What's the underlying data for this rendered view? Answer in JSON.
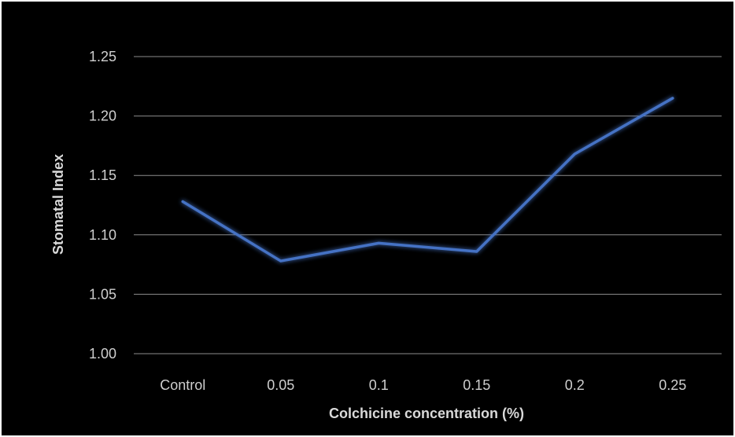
{
  "chart_data": {
    "type": "line",
    "title": "",
    "xlabel": "Colchicine concentration (%)",
    "ylabel": "Stomatal Index",
    "categories": [
      "Control",
      "0.05",
      "0.1",
      "0.15",
      "0.2",
      "0.25"
    ],
    "series": [
      {
        "values": [
          1.128,
          1.078,
          1.093,
          1.086,
          1.168,
          1.215
        ],
        "color": "#4472c4"
      }
    ],
    "ylim": [
      1.0,
      1.25
    ],
    "yticks": [
      "1.00",
      "1.05",
      "1.10",
      "1.15",
      "1.20",
      "1.25"
    ],
    "grid": true,
    "legend": "none",
    "background": "#000000",
    "gridline_color": "#8c8c8c"
  }
}
